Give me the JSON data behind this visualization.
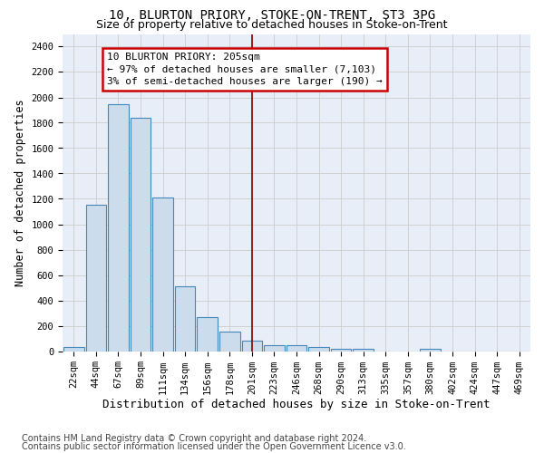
{
  "title1": "10, BLURTON PRIORY, STOKE-ON-TRENT, ST3 3PG",
  "title2": "Size of property relative to detached houses in Stoke-on-Trent",
  "xlabel": "Distribution of detached houses by size in Stoke-on-Trent",
  "ylabel": "Number of detached properties",
  "footer1": "Contains HM Land Registry data © Crown copyright and database right 2024.",
  "footer2": "Contains public sector information licensed under the Open Government Licence v3.0.",
  "bar_labels": [
    "22sqm",
    "44sqm",
    "67sqm",
    "89sqm",
    "111sqm",
    "134sqm",
    "156sqm",
    "178sqm",
    "201sqm",
    "223sqm",
    "246sqm",
    "268sqm",
    "290sqm",
    "313sqm",
    "335sqm",
    "357sqm",
    "380sqm",
    "402sqm",
    "424sqm",
    "447sqm",
    "469sqm"
  ],
  "bar_values": [
    30,
    1150,
    1950,
    1840,
    1210,
    510,
    270,
    155,
    85,
    50,
    45,
    30,
    20,
    15,
    0,
    0,
    20,
    0,
    0,
    0,
    0
  ],
  "bar_color": "#ccdcec",
  "bar_edge_color": "#4488bb",
  "vline_x": 8,
  "vline_color": "#880000",
  "annotation_line1": "10 BLURTON PRIORY: 205sqm",
  "annotation_line2": "← 97% of detached houses are smaller (7,103)",
  "annotation_line3": "3% of semi-detached houses are larger (190) →",
  "annotation_box_color": "#ffffff",
  "annotation_box_edge": "#cc0000",
  "ylim": [
    0,
    2500
  ],
  "yticks": [
    0,
    200,
    400,
    600,
    800,
    1000,
    1200,
    1400,
    1600,
    1800,
    2000,
    2200,
    2400
  ],
  "grid_color": "#cccccc",
  "bg_color": "#e8eef8",
  "title1_fontsize": 10,
  "title2_fontsize": 9,
  "xlabel_fontsize": 9,
  "ylabel_fontsize": 8.5,
  "tick_fontsize": 7.5,
  "annot_fontsize": 8,
  "footer_fontsize": 7
}
